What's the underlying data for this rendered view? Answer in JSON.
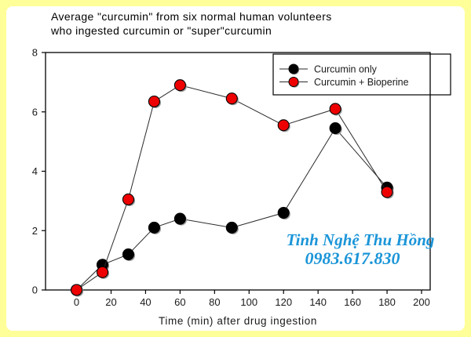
{
  "title": {
    "line1": "Average \"curcumin\" from six normal human volunteers",
    "line2": "who ingested curcumin or \"super\"curcumin"
  },
  "chart_data": {
    "type": "line",
    "x": [
      0,
      15,
      30,
      45,
      60,
      90,
      120,
      150,
      180
    ],
    "series": [
      {
        "name": "Curcumin only",
        "color": "#000000",
        "values": [
          0,
          0.85,
          1.2,
          2.1,
          2.4,
          2.1,
          2.6,
          5.45,
          3.45
        ]
      },
      {
        "name": "Curcumin + Bioperine",
        "color": "#ee0000",
        "values": [
          0,
          0.6,
          3.05,
          6.35,
          6.9,
          6.45,
          5.55,
          6.1,
          3.3
        ]
      }
    ],
    "xlabel": "Time (min) after drug ingestion",
    "ylabel": "",
    "xlim": [
      -18,
      205
    ],
    "ylim": [
      0,
      8
    ],
    "x_ticks": [
      0,
      20,
      40,
      60,
      80,
      100,
      120,
      140,
      160,
      180,
      200
    ],
    "y_ticks": [
      0,
      2,
      4,
      6,
      8
    ],
    "grid": false,
    "legend_position": "top-right"
  },
  "watermark": {
    "line1": "Tinh Nghệ Thu Hồng",
    "line2": "0983.617.830",
    "color": "#1b95d8"
  },
  "colors": {
    "frame_border": "#ffff99",
    "plot_background": "#ffffff",
    "axis": "#000000",
    "data_line": "#2a2a2a",
    "marker_shadow": "#a0a0a0",
    "series1": "#000000",
    "series2": "#ee0000"
  }
}
